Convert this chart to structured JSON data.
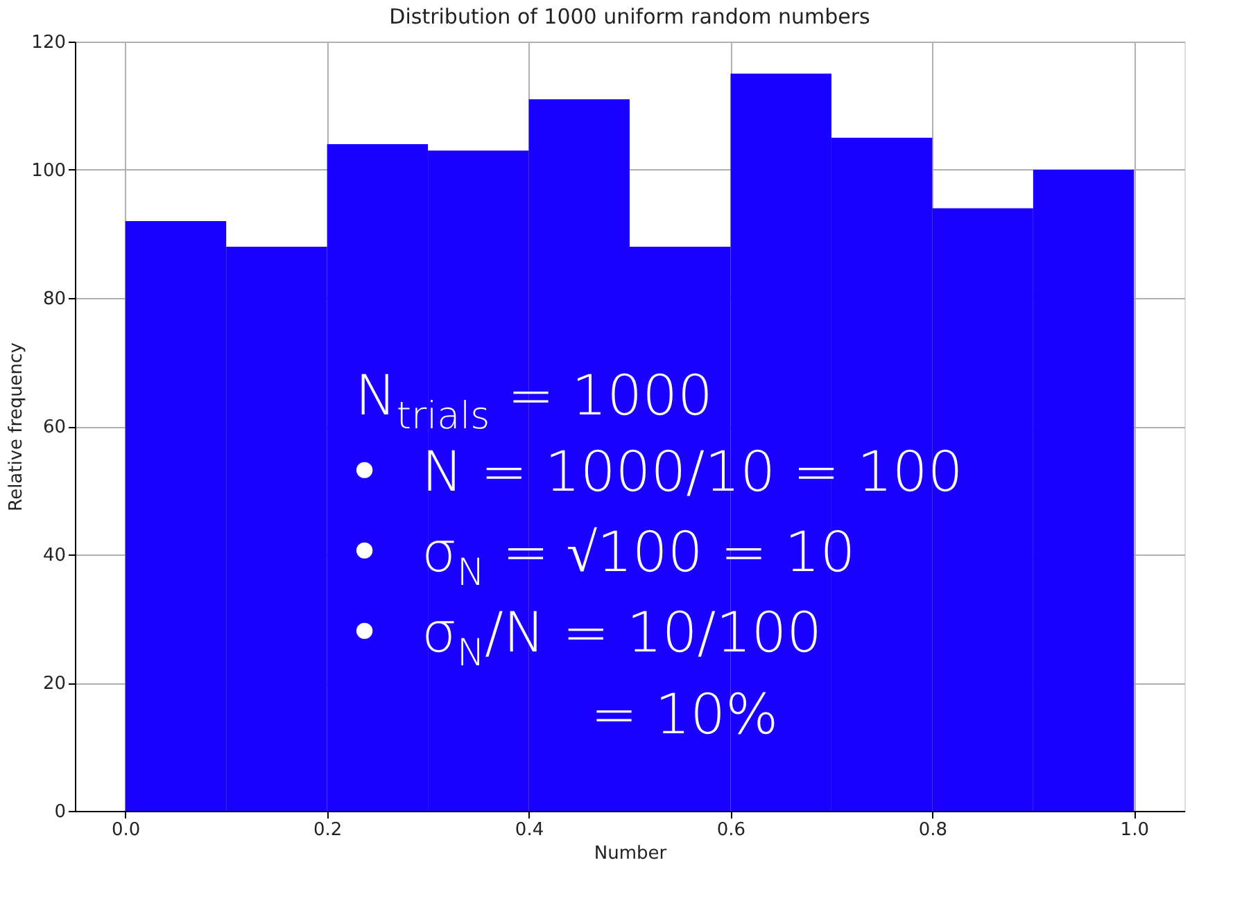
{
  "chart_data": {
    "type": "histogram",
    "title": "Distribution of 1000 uniform random numbers",
    "xlabel": "Number",
    "ylabel": "Relative frequency",
    "bins": [
      0.0,
      0.1,
      0.2,
      0.3,
      0.4,
      0.5,
      0.6,
      0.7,
      0.8,
      0.9,
      1.0
    ],
    "values": [
      92,
      88,
      104,
      103,
      111,
      88,
      115,
      105,
      94,
      100
    ],
    "color": "#1a00ff",
    "xlim": [
      -0.05,
      1.05
    ],
    "xticks": [
      {
        "value": 0,
        "label": "0.0"
      },
      {
        "value": 0.2,
        "label": "0.2"
      },
      {
        "value": 0.4,
        "label": "0.4"
      },
      {
        "value": 0.6,
        "label": "0.6"
      },
      {
        "value": 0.8,
        "label": "0.8"
      },
      {
        "value": 1,
        "label": "1.0"
      }
    ],
    "ylim": [
      0,
      120
    ],
    "yticks": [
      0,
      20,
      40,
      60,
      80,
      100,
      120
    ],
    "grid": true,
    "annotations": [
      "N$_{trials}$ = 1000",
      "• N = 1000/10 = 100",
      "• σ$_{N}$ = √100 = 10",
      "• σ$_{N}$/N = 10/100",
      "= 10%"
    ]
  }
}
